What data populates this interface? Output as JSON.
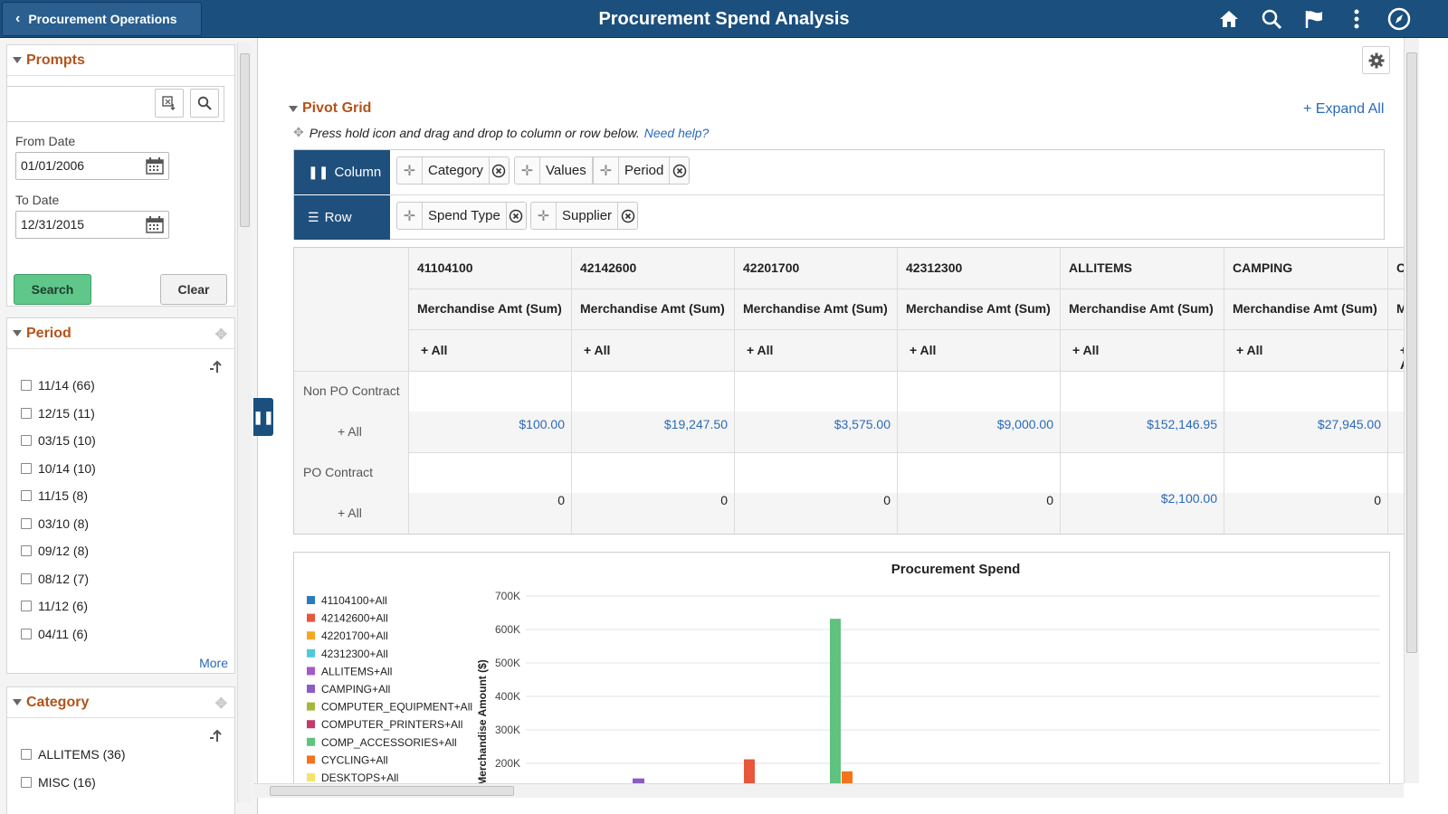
{
  "header": {
    "back_label": "Procurement Operations",
    "title": "Procurement Spend Analysis",
    "icons": [
      "home-icon",
      "search-icon",
      "flag-icon",
      "more-icon",
      "navigator-icon"
    ]
  },
  "prompts": {
    "title": "Prompts",
    "search_value": "",
    "from_label": "From Date",
    "from_value": "01/01/2006",
    "to_label": "To Date",
    "to_value": "12/31/2015",
    "search_btn": "Search",
    "clear_btn": "Clear"
  },
  "period": {
    "title": "Period",
    "items": [
      "11/14 (66)",
      "12/15 (11)",
      "03/15 (10)",
      "10/14 (10)",
      "11/15 (8)",
      "03/10 (8)",
      "09/12 (8)",
      "08/12 (7)",
      "11/12 (6)",
      "04/11 (6)"
    ],
    "more": "More"
  },
  "category": {
    "title": "Category",
    "items": [
      "ALLITEMS (36)",
      "MISC (16)"
    ]
  },
  "pivot": {
    "title": "Pivot Grid",
    "expand_all": "+ Expand All",
    "hint": "Press hold icon and drag and drop to column or row below.",
    "help": "Need help?",
    "column_label": "Column",
    "row_label": "Row",
    "column_chips": [
      "Category",
      "Values",
      "Period"
    ],
    "row_chips": [
      "Spend Type",
      "Supplier"
    ]
  },
  "grid": {
    "columns": [
      "41104100",
      "42142600",
      "42201700",
      "42312300",
      "ALLITEMS",
      "CAMPING",
      "C"
    ],
    "measure": "Merchandise Amt (Sum)",
    "measure_partial": "M",
    "all_label": "+ All",
    "rows": [
      {
        "label": "Non PO Contract",
        "sub": "+ All",
        "values": [
          "$100.00",
          "$19,247.50",
          "$3,575.00",
          "$9,000.00",
          "$152,146.95",
          "$27,945.00"
        ]
      },
      {
        "label": "PO Contract",
        "sub": "+ All",
        "values": [
          "0",
          "0",
          "0",
          "0",
          "$2,100.00",
          "0"
        ]
      }
    ]
  },
  "chart_data": {
    "type": "bar",
    "title": "Procurement Spend",
    "ylabel": "Merchandise Amount ($)",
    "xlabel": "",
    "ylim": [
      150000,
      700000
    ],
    "yticks": [
      "700K",
      "600K",
      "500K",
      "400K",
      "300K",
      "200K"
    ],
    "yticks_values": [
      700000,
      600000,
      500000,
      400000,
      300000,
      200000
    ],
    "legend_placement": "left",
    "series": [
      {
        "name": "41104100+All",
        "color": "#2b7bbd"
      },
      {
        "name": "42142600+All",
        "color": "#e8573c"
      },
      {
        "name": "42201700+All",
        "color": "#f5a623"
      },
      {
        "name": "42312300+All",
        "color": "#4fc9d9"
      },
      {
        "name": "ALLITEMS+All",
        "color": "#a659c9"
      },
      {
        "name": "CAMPING+All",
        "color": "#8a5cc9"
      },
      {
        "name": "COMPUTER_EQUIPMENT+All",
        "color": "#a3b83c"
      },
      {
        "name": "COMPUTER_PRINTERS+All",
        "color": "#c23b6a"
      },
      {
        "name": "COMP_ACCESSORIES+All",
        "color": "#5fc27e"
      },
      {
        "name": "CYCLING+All",
        "color": "#f4741c"
      },
      {
        "name": "DESKTOPS+All",
        "color": "#f2e46b"
      }
    ],
    "bars": [
      {
        "series": "CAMPING+All",
        "value": 155000
      },
      {
        "series": "42142600+All",
        "value": 212000
      },
      {
        "series": "COMP_ACCESSORIES+All",
        "value": 632000
      },
      {
        "series": "CYCLING+All",
        "value": 176000
      }
    ]
  }
}
